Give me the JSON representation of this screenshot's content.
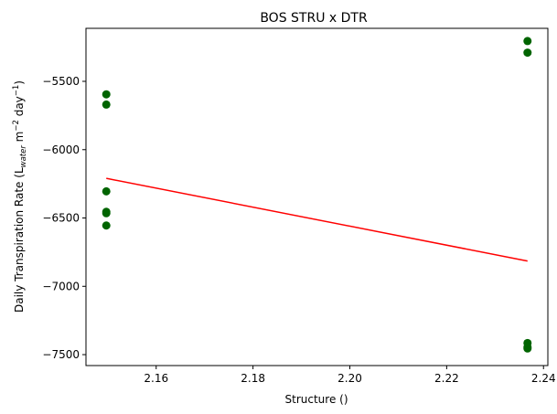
{
  "chart_data": {
    "type": "scatter",
    "title": "BOS STRU x DTR",
    "xlabel": "Structure ()",
    "ylabel": {
      "prefix": "Daily Transpiration Rate (L",
      "sub": "water",
      "middle": " m",
      "sup1": "−2",
      "middle2": " day",
      "sup2": "−1",
      "suffix": ")"
    },
    "xlim": [
      2.1455,
      2.2409
    ],
    "ylim": [
      -7580,
      -5112
    ],
    "x_ticks": [
      2.16,
      2.18,
      2.2,
      2.22,
      2.24
    ],
    "x_tick_labels": [
      "2.16",
      "2.18",
      "2.20",
      "2.22",
      "2.24"
    ],
    "y_ticks": [
      -7500,
      -7000,
      -6500,
      -6000,
      -5500
    ],
    "y_tick_labels": [
      "−7500",
      "−7000",
      "−6500",
      "−6000",
      "−5500"
    ],
    "grid": false,
    "series": [
      {
        "kind": "points",
        "color": "#006400",
        "points": [
          {
            "x": 2.1497,
            "y": -5595
          },
          {
            "x": 2.1497,
            "y": -5670
          },
          {
            "x": 2.1497,
            "y": -6305
          },
          {
            "x": 2.1497,
            "y": -6455
          },
          {
            "x": 2.1497,
            "y": -6465
          },
          {
            "x": 2.1497,
            "y": -6555
          },
          {
            "x": 2.2367,
            "y": -5205
          },
          {
            "x": 2.2367,
            "y": -5290
          },
          {
            "x": 2.2367,
            "y": -7415
          },
          {
            "x": 2.2367,
            "y": -7445
          },
          {
            "x": 2.2367,
            "y": -7455
          }
        ]
      },
      {
        "kind": "fit-line",
        "color": "#ff0000",
        "points": [
          {
            "x": 2.1497,
            "y": -6210
          },
          {
            "x": 2.2367,
            "y": -6815
          }
        ]
      }
    ]
  }
}
